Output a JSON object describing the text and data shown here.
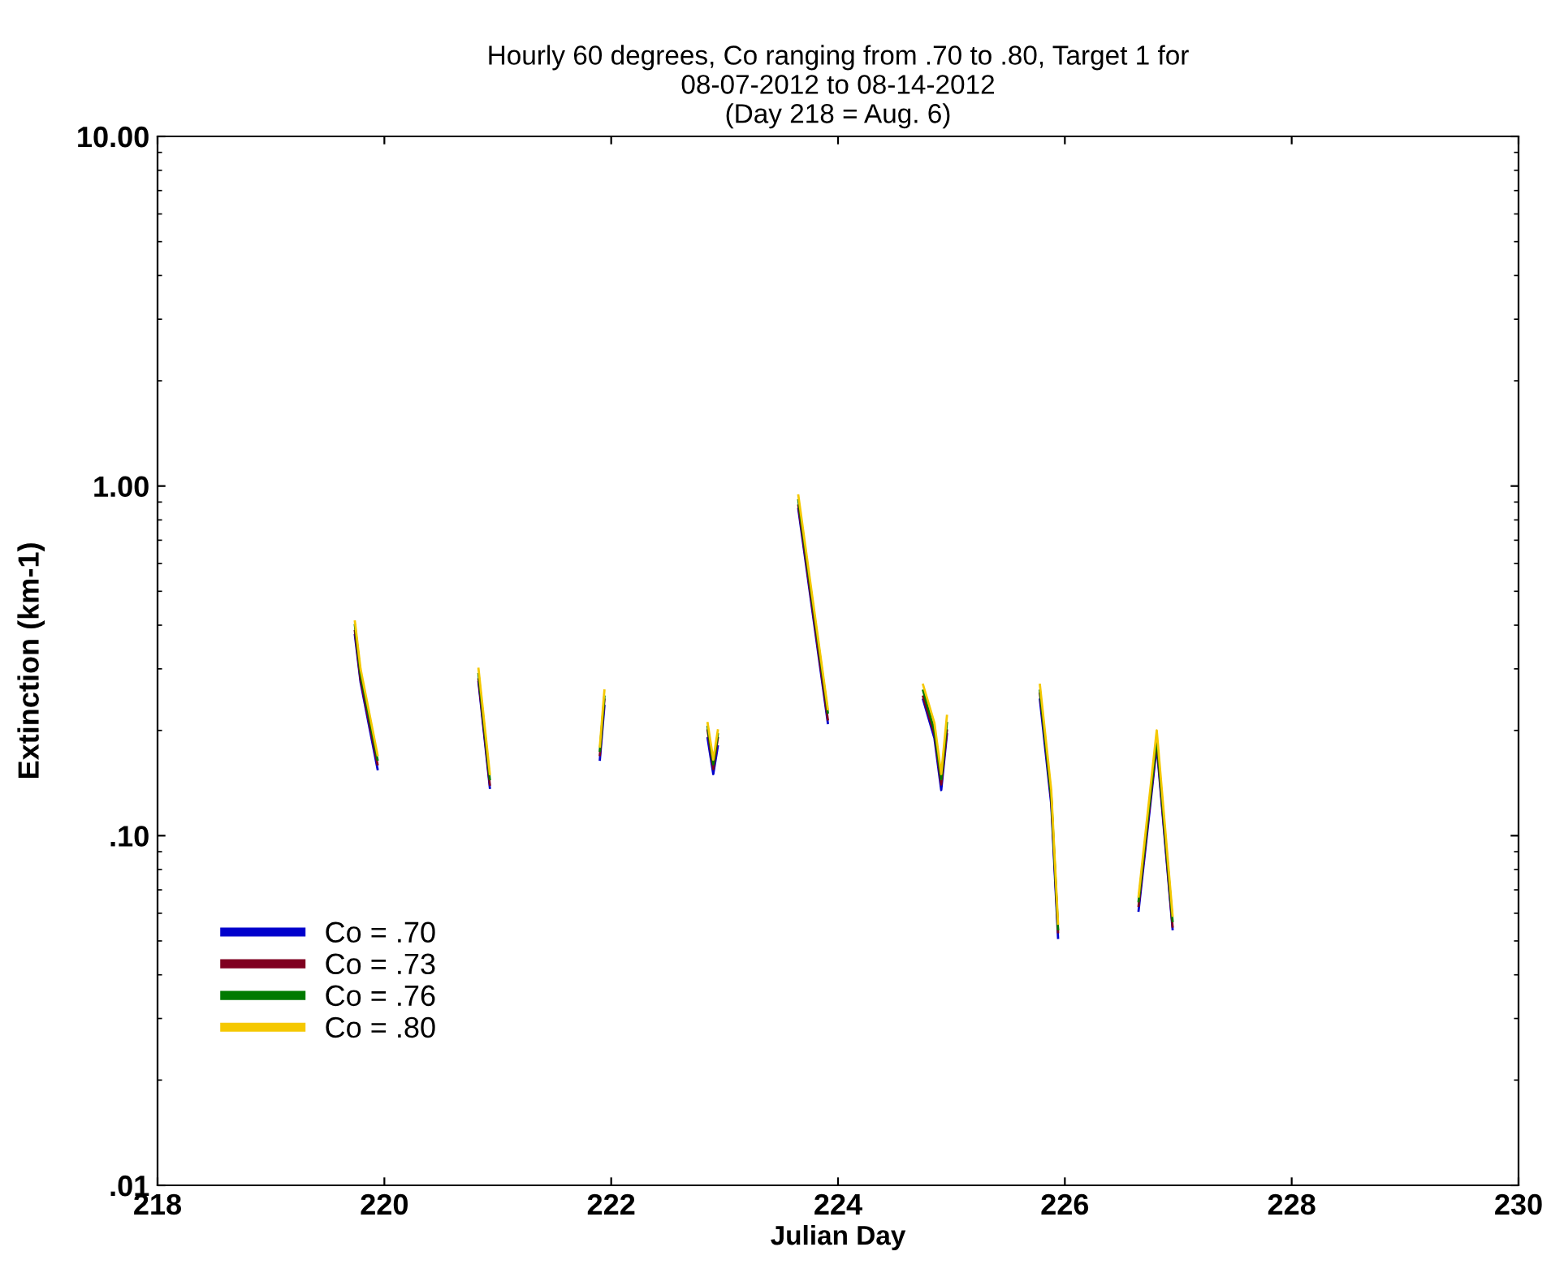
{
  "chart_data": {
    "type": "line",
    "title": "Hourly 60 degrees, Co ranging from .70 to .80, Target 1 for\n08-07-2012 to 08-14-2012\n(Day 218 = Aug. 6)",
    "xlabel": "Julian Day",
    "ylabel": "Extinction (km-1)",
    "log": "y",
    "xlim": [
      218,
      230
    ],
    "xticks": [
      218,
      220,
      222,
      224,
      226,
      228,
      230
    ],
    "ylim": [
      0.01,
      10
    ],
    "yticks": [
      {
        "value": 0.01,
        "label": ".01"
      },
      {
        "value": 0.1,
        "label": ".10"
      },
      {
        "value": 1,
        "label": "1.00"
      },
      {
        "value": 10,
        "label": "10.00"
      }
    ],
    "grid": false,
    "legend": "bottom left",
    "marker": "none",
    "line_style": "solid",
    "x": [
      219.74,
      219.79,
      219.94,
      220.4,
      220.83,
      220.93,
      221.4,
      221.9,
      221.94,
      222.4,
      222.85,
      222.9,
      222.94,
      223.3,
      223.65,
      223.91,
      224.3,
      224.75,
      224.85,
      224.91,
      224.96,
      225.4,
      225.78,
      225.88,
      225.94,
      226.3,
      226.65,
      226.81,
      226.95
    ],
    "series": [
      {
        "name": "Co = .70",
        "color": "#0000cc",
        "values": [
          0.375,
          0.275,
          0.155,
          null,
          0.275,
          0.137,
          null,
          0.165,
          0.235,
          null,
          0.19,
          0.15,
          0.18,
          null,
          0.86,
          0.21,
          null,
          0.245,
          0.19,
          0.135,
          0.195,
          null,
          0.245,
          0.123,
          0.051,
          null,
          0.061,
          0.18,
          0.054
        ]
      },
      {
        "name": "Co = .73",
        "color": "#800020",
        "values": [
          0.385,
          0.28,
          0.16,
          null,
          0.28,
          0.14,
          null,
          0.17,
          0.245,
          null,
          0.2,
          0.155,
          0.19,
          null,
          0.88,
          0.215,
          null,
          0.25,
          0.195,
          0.14,
          0.2,
          null,
          0.255,
          0.127,
          0.053,
          null,
          0.063,
          0.185,
          0.055
        ]
      },
      {
        "name": "Co = .76",
        "color": "#007a00",
        "values": [
          0.4,
          0.29,
          0.165,
          null,
          0.29,
          0.145,
          null,
          0.175,
          0.25,
          null,
          0.205,
          0.16,
          0.195,
          null,
          0.91,
          0.225,
          null,
          0.26,
          0.2,
          0.145,
          0.21,
          null,
          0.26,
          0.13,
          0.054,
          null,
          0.065,
          0.19,
          0.057
        ]
      },
      {
        "name": "Co = .80",
        "color": "#f5c800",
        "values": [
          0.41,
          0.3,
          0.17,
          null,
          0.3,
          0.15,
          null,
          0.18,
          0.26,
          null,
          0.21,
          0.165,
          0.2,
          null,
          0.94,
          0.23,
          null,
          0.27,
          0.21,
          0.15,
          0.22,
          null,
          0.27,
          0.135,
          0.056,
          null,
          0.067,
          0.2,
          0.059
        ]
      }
    ]
  }
}
